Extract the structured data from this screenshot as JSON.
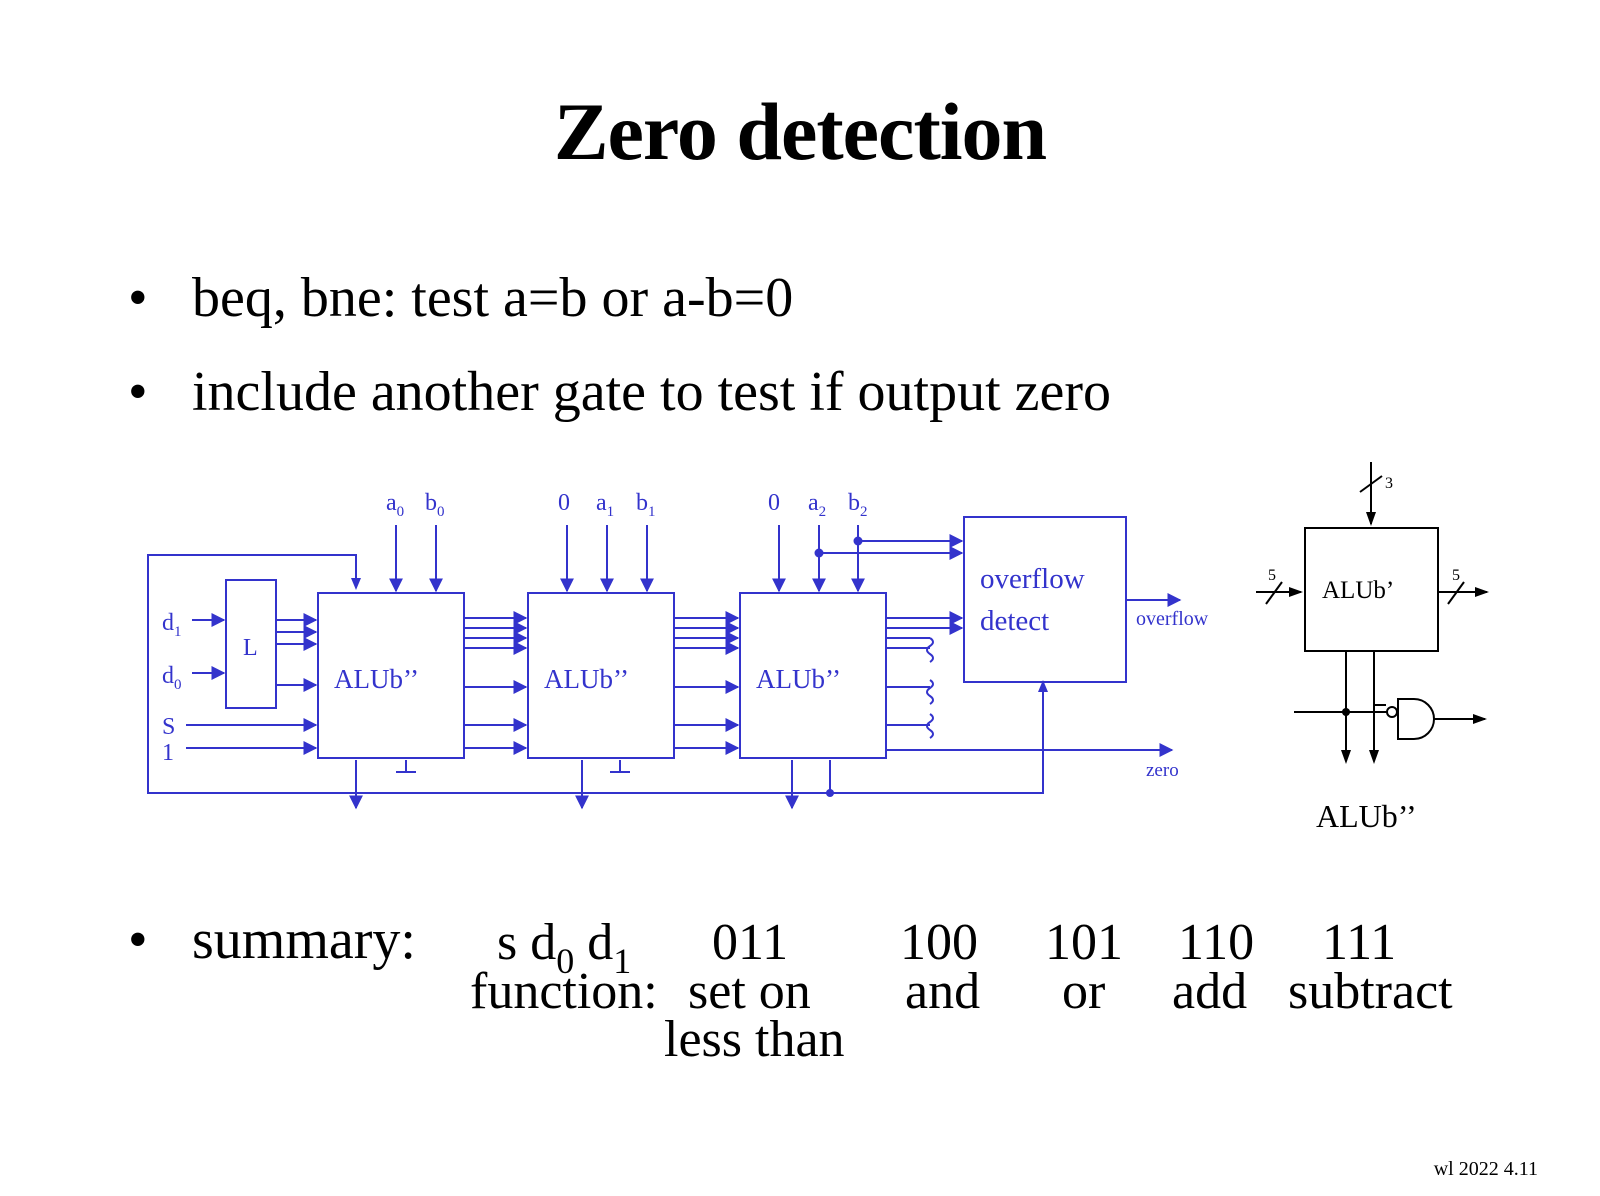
{
  "title": "Zero detection",
  "bullets": [
    "beq, bne:  test  a=b  or  a-b=0",
    "include another gate to test if output zero",
    "summary:"
  ],
  "summary": {
    "header_label": "s d",
    "header_sub0": "0",
    "header_d1": " d",
    "header_sub1": "1",
    "function_label": "function:",
    "columns": [
      {
        "code": "011",
        "function": "set on",
        "function2": "less than"
      },
      {
        "code": "100",
        "function": "and"
      },
      {
        "code": "101",
        "function": "or"
      },
      {
        "code": "110",
        "function": "add"
      },
      {
        "code": "111",
        "function": "subtract"
      }
    ]
  },
  "diagram": {
    "color": "#3333cc",
    "inputs": {
      "a0": "a",
      "a0_sub": "0",
      "b0": "b",
      "b0_sub": "0",
      "zero1": "0",
      "a1": "a",
      "a1_sub": "1",
      "b1": "b",
      "b1_sub": "1",
      "zero2": "0",
      "a2": "a",
      "a2_sub": "2",
      "b2": "b",
      "b2_sub": "2"
    },
    "left_inputs": {
      "d1": "d",
      "d1_sub": "1",
      "d0": "d",
      "d0_sub": "0",
      "s": "S",
      "one": "1"
    },
    "latch_label": "L",
    "alu_label": "ALUb’’",
    "overflow_box_line1": "overflow",
    "overflow_box_line2": "detect",
    "overflow_out": "overflow",
    "zero_out": "zero",
    "side": {
      "alu_label": "ALUb’",
      "bus_in": "5",
      "bus_out": "5",
      "bus_top": "3",
      "caption": "ALUb’’"
    }
  },
  "footer": "wl 2022  4.11"
}
